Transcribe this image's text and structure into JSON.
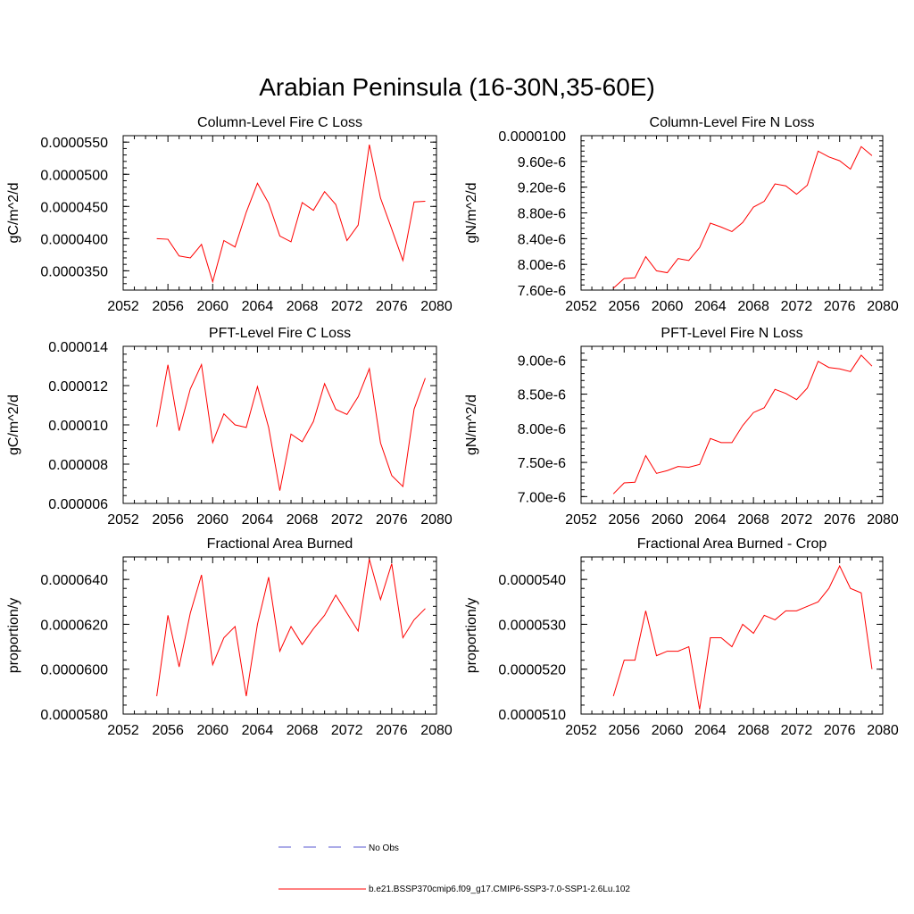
{
  "title": "Arabian Peninsula (16-30N,35-60E)",
  "legend": {
    "items": [
      {
        "label": "No Obs",
        "color": "#5a5ad0",
        "style": "dashed"
      },
      {
        "label": "b.e21.BSSP370cmip6.f09_g17.CMIP6-SSP3-7.0-SSP1-2.6Lu.102",
        "color": "#ff0000",
        "style": "solid"
      }
    ]
  },
  "chart_data": [
    {
      "type": "line",
      "title": "Column-Level Fire C Loss",
      "ylabel": "gC/m^2/d",
      "xlim": [
        2052,
        2080
      ],
      "xticks": [
        "2052",
        "2056",
        "2060",
        "2064",
        "2068",
        "2072",
        "2076",
        "2080"
      ],
      "ylim": [
        3.2e-05,
        5.6e-05
      ],
      "yticks": [
        "0.0000350",
        "0.0000400",
        "0.0000450",
        "0.0000500",
        "0.0000550"
      ],
      "ytick_values": [
        3.5e-05,
        4e-05,
        4.5e-05,
        5e-05,
        5.5e-05
      ],
      "x": [
        2055,
        2056,
        2057,
        2058,
        2059,
        2060,
        2061,
        2062,
        2063,
        2064,
        2065,
        2066,
        2067,
        2068,
        2069,
        2070,
        2071,
        2072,
        2073,
        2074,
        2075,
        2076,
        2077,
        2078,
        2079
      ],
      "series": [
        {
          "color": "#ff0000",
          "values": [
            4e-05,
            3.99e-05,
            3.73e-05,
            3.7e-05,
            3.91e-05,
            3.33e-05,
            3.97e-05,
            3.87e-05,
            4.41e-05,
            4.86e-05,
            4.55e-05,
            4.04e-05,
            3.95e-05,
            4.56e-05,
            4.44e-05,
            4.73e-05,
            4.53e-05,
            3.97e-05,
            4.21e-05,
            5.46e-05,
            4.63e-05,
            4.15e-05,
            3.66e-05,
            4.57e-05,
            4.58e-05
          ]
        }
      ]
    },
    {
      "type": "line",
      "title": "Column-Level Fire N Loss",
      "ylabel": "gN/m^2/d",
      "xlim": [
        2052,
        2080
      ],
      "xticks": [
        "2052",
        "2056",
        "2060",
        "2064",
        "2068",
        "2072",
        "2076",
        "2080"
      ],
      "ylim": [
        7.6e-06,
        1e-05
      ],
      "yticks": [
        "7.60e-6",
        "8.00e-6",
        "8.40e-6",
        "8.80e-6",
        "9.20e-6",
        "9.60e-6",
        "0.0000100"
      ],
      "ytick_values": [
        7.6e-06,
        8e-06,
        8.4e-06,
        8.8e-06,
        9.2e-06,
        9.6e-06,
        1e-05
      ],
      "x": [
        2055,
        2056,
        2057,
        2058,
        2059,
        2060,
        2061,
        2062,
        2063,
        2064,
        2065,
        2066,
        2067,
        2068,
        2069,
        2070,
        2071,
        2072,
        2073,
        2074,
        2075,
        2076,
        2077,
        2078,
        2079
      ],
      "series": [
        {
          "color": "#ff0000",
          "values": [
            7.63e-06,
            7.78e-06,
            7.79e-06,
            8.12e-06,
            7.9e-06,
            7.87e-06,
            8.09e-06,
            8.06e-06,
            8.26e-06,
            8.64e-06,
            8.58e-06,
            8.51e-06,
            8.65e-06,
            8.89e-06,
            8.98e-06,
            9.25e-06,
            9.22e-06,
            9.09e-06,
            9.23e-06,
            9.76e-06,
            9.67e-06,
            9.61e-06,
            9.48e-06,
            9.83e-06,
            9.69e-06
          ]
        }
      ]
    },
    {
      "type": "line",
      "title": "PFT-Level Fire C Loss",
      "ylabel": "gC/m^2/d",
      "xlim": [
        2052,
        2080
      ],
      "xticks": [
        "2052",
        "2056",
        "2060",
        "2064",
        "2068",
        "2072",
        "2076",
        "2080"
      ],
      "ylim": [
        6e-06,
        1.4e-05
      ],
      "yticks": [
        "0.000006",
        "0.000008",
        "0.000010",
        "0.000012",
        "0.000014"
      ],
      "ytick_values": [
        6e-06,
        8e-06,
        1e-05,
        1.2e-05,
        1.4e-05
      ],
      "x": [
        2055,
        2056,
        2057,
        2058,
        2059,
        2060,
        2061,
        2062,
        2063,
        2064,
        2065,
        2066,
        2067,
        2068,
        2069,
        2070,
        2071,
        2072,
        2073,
        2074,
        2075,
        2076,
        2077,
        2078,
        2079
      ],
      "series": [
        {
          "color": "#ff0000",
          "values": [
            9.9e-06,
            1.306e-05,
            9.7e-06,
            1.183e-05,
            1.307e-05,
            9.1e-06,
            1.056e-05,
            1e-05,
            9.87e-06,
            1.195e-05,
            9.87e-06,
            6.65e-06,
            9.53e-06,
            9.14e-06,
            1.017e-05,
            1.21e-05,
            1.079e-05,
            1.053e-05,
            1.143e-05,
            1.286e-05,
            9.08e-06,
            7.42e-06,
            6.86e-06,
            1.08e-05,
            1.238e-05
          ]
        }
      ]
    },
    {
      "type": "line",
      "title": "PFT-Level Fire N Loss",
      "ylabel": "gN/m^2/d",
      "xlim": [
        2052,
        2080
      ],
      "xticks": [
        "2052",
        "2056",
        "2060",
        "2064",
        "2068",
        "2072",
        "2076",
        "2080"
      ],
      "ylim": [
        6.9e-06,
        9.2e-06
      ],
      "yticks": [
        "7.00e-6",
        "7.50e-6",
        "8.00e-6",
        "8.50e-6",
        "9.00e-6"
      ],
      "ytick_values": [
        7e-06,
        7.5e-06,
        8e-06,
        8.5e-06,
        9e-06
      ],
      "x": [
        2055,
        2056,
        2057,
        2058,
        2059,
        2060,
        2061,
        2062,
        2063,
        2064,
        2065,
        2066,
        2067,
        2068,
        2069,
        2070,
        2071,
        2072,
        2073,
        2074,
        2075,
        2076,
        2077,
        2078,
        2079
      ],
      "series": [
        {
          "color": "#ff0000",
          "values": [
            7.04e-06,
            7.2e-06,
            7.21e-06,
            7.6e-06,
            7.34e-06,
            7.38e-06,
            7.44e-06,
            7.43e-06,
            7.47e-06,
            7.85e-06,
            7.79e-06,
            7.79e-06,
            8.04e-06,
            8.23e-06,
            8.3e-06,
            8.57e-06,
            8.51e-06,
            8.42e-06,
            8.59e-06,
            8.98e-06,
            8.89e-06,
            8.87e-06,
            8.83e-06,
            9.07e-06,
            8.91e-06
          ]
        }
      ]
    },
    {
      "type": "line",
      "title": "Fractional Area Burned",
      "ylabel": "proportion/y",
      "xlim": [
        2052,
        2080
      ],
      "xticks": [
        "2052",
        "2056",
        "2060",
        "2064",
        "2068",
        "2072",
        "2076",
        "2080"
      ],
      "ylim": [
        5.8e-05,
        6.5e-05
      ],
      "yticks": [
        "0.0000580",
        "0.0000600",
        "0.0000620",
        "0.0000640"
      ],
      "ytick_values": [
        5.8e-05,
        6e-05,
        6.2e-05,
        6.4e-05
      ],
      "x": [
        2055,
        2056,
        2057,
        2058,
        2059,
        2060,
        2061,
        2062,
        2063,
        2064,
        2065,
        2066,
        2067,
        2068,
        2069,
        2070,
        2071,
        2072,
        2073,
        2074,
        2075,
        2076,
        2077,
        2078,
        2079
      ],
      "series": [
        {
          "color": "#ff0000",
          "values": [
            5.88e-05,
            6.24e-05,
            6.01e-05,
            6.25e-05,
            6.42e-05,
            6.02e-05,
            6.14e-05,
            6.19e-05,
            5.88e-05,
            6.2e-05,
            6.41e-05,
            6.08e-05,
            6.19e-05,
            6.11e-05,
            6.18e-05,
            6.24e-05,
            6.33e-05,
            6.25e-05,
            6.17e-05,
            6.49e-05,
            6.31e-05,
            6.47e-05,
            6.14e-05,
            6.22e-05,
            6.27e-05
          ]
        }
      ]
    },
    {
      "type": "line",
      "title": "Fractional Area Burned - Crop",
      "ylabel": "proportion/y",
      "xlim": [
        2052,
        2080
      ],
      "xticks": [
        "2052",
        "2056",
        "2060",
        "2064",
        "2068",
        "2072",
        "2076",
        "2080"
      ],
      "ylim": [
        5.1e-05,
        5.45e-05
      ],
      "yticks": [
        "0.0000510",
        "0.0000520",
        "0.0000530",
        "0.0000540"
      ],
      "ytick_values": [
        5.1e-05,
        5.2e-05,
        5.3e-05,
        5.4e-05
      ],
      "x": [
        2055,
        2056,
        2057,
        2058,
        2059,
        2060,
        2061,
        2062,
        2063,
        2064,
        2065,
        2066,
        2067,
        2068,
        2069,
        2070,
        2071,
        2072,
        2073,
        2074,
        2075,
        2076,
        2077,
        2078,
        2079
      ],
      "series": [
        {
          "color": "#ff0000",
          "values": [
            5.14e-05,
            5.22e-05,
            5.22e-05,
            5.33e-05,
            5.23e-05,
            5.24e-05,
            5.24e-05,
            5.25e-05,
            5.11e-05,
            5.27e-05,
            5.27e-05,
            5.25e-05,
            5.3e-05,
            5.28e-05,
            5.32e-05,
            5.31e-05,
            5.33e-05,
            5.33e-05,
            5.34e-05,
            5.35e-05,
            5.38e-05,
            5.43e-05,
            5.38e-05,
            5.37e-05,
            5.2e-05
          ]
        }
      ]
    }
  ]
}
